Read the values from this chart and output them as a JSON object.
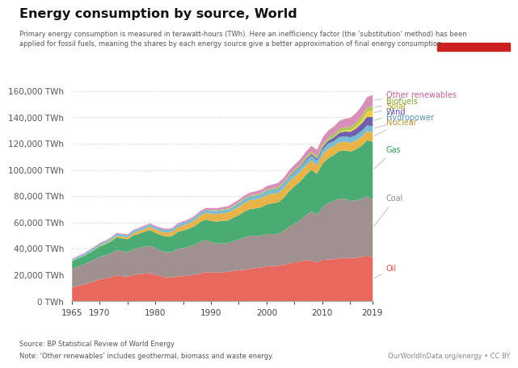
{
  "title": "Energy consumption by source, World",
  "subtitle": "Primary energy consumption is measured in terawatt-hours (TWh). Here an inefficiency factor (the ‘substitution’ method) has been\napplied for fossil fuels, meaning the shares by each energy source give a better approximation of final energy consumption.",
  "source_text": "Source: BP Statistical Review of World Energy",
  "note_text": "Note: ‘Other renewables’ includes geothermal, biomass and waste energy.",
  "credit_text": "OurWorldInData.org/energy • CC BY",
  "years": [
    1965,
    1966,
    1967,
    1968,
    1969,
    1970,
    1971,
    1972,
    1973,
    1974,
    1975,
    1976,
    1977,
    1978,
    1979,
    1980,
    1981,
    1982,
    1983,
    1984,
    1985,
    1986,
    1987,
    1988,
    1989,
    1990,
    1991,
    1992,
    1993,
    1994,
    1995,
    1996,
    1997,
    1998,
    1999,
    2000,
    2001,
    2002,
    2003,
    2004,
    2005,
    2006,
    2007,
    2008,
    2009,
    2010,
    2011,
    2012,
    2013,
    2014,
    2015,
    2016,
    2017,
    2018,
    2019
  ],
  "series": {
    "Oil": [
      11112,
      12098,
      13017,
      14200,
      15600,
      17000,
      17800,
      18900,
      20200,
      19500,
      19100,
      20500,
      20900,
      21400,
      21800,
      20500,
      19500,
      18700,
      18500,
      19500,
      19500,
      20000,
      20500,
      21500,
      22500,
      22300,
      22100,
      22500,
      22700,
      23500,
      24000,
      24300,
      25100,
      25700,
      26100,
      27000,
      27200,
      27500,
      28000,
      29200,
      30100,
      30700,
      31500,
      31500,
      29800,
      31900,
      32300,
      32400,
      33000,
      33500,
      33200,
      33500,
      34300,
      35100,
      33600
    ],
    "Coal": [
      14000,
      14700,
      15200,
      16100,
      16700,
      17400,
      17700,
      18100,
      19200,
      18900,
      18600,
      19500,
      20000,
      20500,
      21000,
      20100,
      19300,
      18900,
      19500,
      20900,
      21500,
      22000,
      22800,
      24100,
      24400,
      23100,
      22200,
      22000,
      21900,
      22700,
      23500,
      24900,
      25200,
      24500,
      24200,
      24500,
      24300,
      24200,
      25800,
      27900,
      29600,
      31500,
      34500,
      37300,
      36600,
      40100,
      42800,
      44400,
      45500,
      44900,
      43600,
      43700,
      44100,
      45100,
      43800
    ],
    "Gas": [
      5600,
      6000,
      6300,
      6700,
      7200,
      7800,
      8300,
      8900,
      9700,
      9800,
      9900,
      10500,
      10900,
      11400,
      11800,
      11800,
      11900,
      12000,
      12100,
      12800,
      13300,
      13600,
      14200,
      15100,
      15700,
      16100,
      16700,
      17100,
      17300,
      17900,
      18600,
      19600,
      20300,
      20900,
      21600,
      22700,
      23400,
      23900,
      25200,
      27100,
      28400,
      29400,
      30600,
      31700,
      30800,
      33200,
      34100,
      34800,
      36200,
      36700,
      37500,
      38800,
      40200,
      42600,
      44300
    ],
    "Nuclear": [
      100,
      130,
      200,
      290,
      400,
      590,
      750,
      900,
      1100,
      1300,
      1500,
      1750,
      2000,
      2200,
      2400,
      2600,
      2800,
      3000,
      3200,
      3500,
      3900,
      4100,
      4500,
      4900,
      5200,
      5500,
      5700,
      5800,
      5900,
      6100,
      6300,
      6600,
      6700,
      6800,
      7000,
      7200,
      7200,
      7300,
      7300,
      7400,
      7300,
      7300,
      7200,
      7000,
      6600,
      7000,
      7300,
      6800,
      6700,
      6700,
      6700,
      6700,
      7000,
      7100,
      7200
    ],
    "Hydropower": [
      1200,
      1250,
      1270,
      1310,
      1350,
      1400,
      1430,
      1480,
      1520,
      1540,
      1560,
      1620,
      1660,
      1700,
      1750,
      1800,
      1850,
      1880,
      1900,
      1950,
      2000,
      2050,
      2100,
      2150,
      2200,
      2300,
      2350,
      2400,
      2450,
      2520,
      2600,
      2700,
      2750,
      2850,
      2900,
      2970,
      3050,
      3100,
      3200,
      3300,
      3350,
      3430,
      3520,
      3560,
      3600,
      3750,
      3820,
      3900,
      4000,
      4050,
      4120,
      4230,
      4320,
      4400,
      4500
    ],
    "Wind": [
      0,
      0,
      0,
      0,
      0,
      0,
      0,
      0,
      0,
      0,
      0,
      0,
      0,
      0,
      0,
      0,
      0,
      0,
      0,
      0,
      0,
      0,
      0,
      0,
      0,
      10,
      15,
      20,
      25,
      35,
      50,
      70,
      100,
      130,
      160,
      210,
      260,
      330,
      440,
      580,
      700,
      850,
      1100,
      1350,
      1500,
      1800,
      2200,
      2700,
      3200,
      3700,
      4200,
      4900,
      5700,
      6500,
      7100
    ],
    "Solar": [
      0,
      0,
      0,
      0,
      0,
      0,
      0,
      0,
      0,
      0,
      0,
      0,
      0,
      0,
      0,
      0,
      0,
      0,
      0,
      0,
      0,
      0,
      0,
      0,
      0,
      0,
      0,
      0,
      0,
      0,
      0,
      0,
      0,
      0,
      0,
      0,
      0,
      10,
      20,
      30,
      50,
      70,
      100,
      140,
      150,
      200,
      280,
      380,
      600,
      900,
      1300,
      1900,
      2800,
      4000,
      5300
    ],
    "Biofuels": [
      0,
      0,
      0,
      0,
      0,
      0,
      0,
      0,
      0,
      0,
      0,
      0,
      0,
      0,
      0,
      0,
      0,
      0,
      0,
      0,
      0,
      0,
      0,
      0,
      0,
      500,
      550,
      580,
      620,
      660,
      700,
      740,
      780,
      820,
      860,
      900,
      950,
      1000,
      1060,
      1140,
      1250,
      1360,
      1490,
      1620,
      1720,
      1860,
      2010,
      2140,
      2280,
      2400,
      2520,
      2640,
      2770,
      2900,
      3010
    ],
    "Other renewables": [
      600,
      620,
      640,
      660,
      680,
      700,
      720,
      740,
      760,
      780,
      800,
      830,
      860,
      900,
      940,
      980,
      1010,
      1040,
      1080,
      1130,
      1180,
      1230,
      1290,
      1360,
      1440,
      1520,
      1610,
      1700,
      1800,
      1910,
      2020,
      2140,
      2270,
      2410,
      2560,
      2720,
      2890,
      3070,
      3270,
      3490,
      3730,
      3990,
      4270,
      4560,
      4830,
      5130,
      5440,
      5760,
      6100,
      6450,
      6820,
      7220,
      7650,
      8100,
      8600
    ]
  },
  "colors": {
    "Oil": "#e8685d",
    "Coal": "#a09090",
    "Gas": "#4aac72",
    "Nuclear": "#e8b44a",
    "Hydropower": "#78bcd4",
    "Wind": "#6e5fb0",
    "Solar": "#f0d040",
    "Biofuels": "#a8c85a",
    "Other renewables": "#d890b8"
  },
  "label_text_colors": {
    "Oil": "#d45050",
    "Coal": "#909090",
    "Gas": "#3a9a5a",
    "Nuclear": "#c89030",
    "Hydropower": "#5090b0",
    "Wind": "#5a50a0",
    "Solar": "#b0a020",
    "Biofuels": "#80a030",
    "Other renewables": "#c06090"
  },
  "stack_order": [
    "Oil",
    "Coal",
    "Gas",
    "Nuclear",
    "Hydropower",
    "Wind",
    "Solar",
    "Biofuels",
    "Other renewables"
  ],
  "ylim": [
    0,
    160000
  ],
  "yticks": [
    0,
    20000,
    40000,
    60000,
    80000,
    100000,
    120000,
    140000,
    160000
  ],
  "xticks": [
    1965,
    1970,
    1975,
    1980,
    1985,
    1990,
    1995,
    2000,
    2005,
    2010,
    2015,
    2019
  ],
  "xticklabels": [
    "1965",
    "1970",
    "",
    "1980",
    "",
    "1990",
    "",
    "2000",
    "",
    "2010",
    "",
    "2019"
  ],
  "background_color": "#ffffff",
  "logo_bg": "#1a3a5c",
  "logo_red": "#cc2020"
}
